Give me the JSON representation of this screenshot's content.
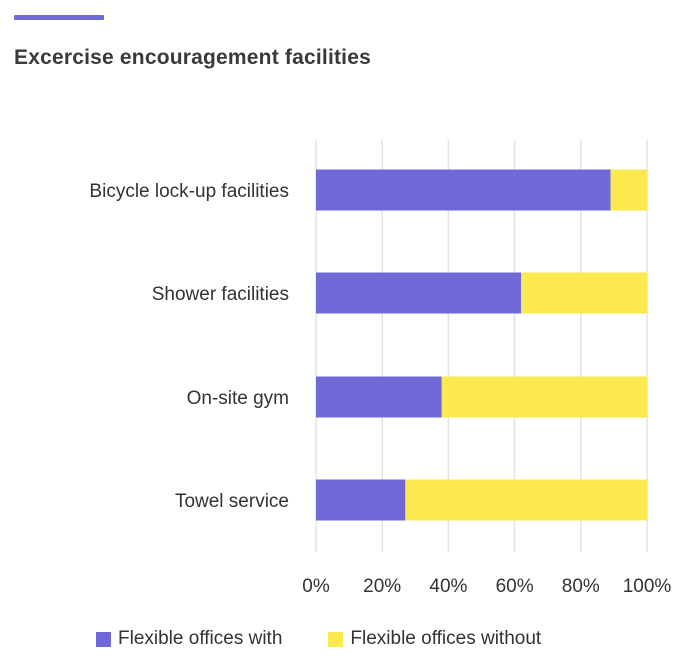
{
  "header": {
    "title": "Excercise encouragement facilities"
  },
  "colors": {
    "accent": "#6f69d8",
    "with": "#6f69d8",
    "without": "#fce94f",
    "grid": "#e3e3e3"
  },
  "chart_data": {
    "type": "bar",
    "orientation": "horizontal",
    "stacked": true,
    "title": "Excercise encouragement facilities",
    "categories": [
      "Bicycle lock-up facilities",
      "Shower facilities",
      "On-site gym",
      "Towel service"
    ],
    "series": [
      {
        "name": "Flexible offices with",
        "color": "#6f69d8",
        "values": [
          89,
          62,
          38,
          27
        ]
      },
      {
        "name": "Flexible offices without",
        "color": "#fce94f",
        "values": [
          11,
          38,
          62,
          73
        ]
      }
    ],
    "xticks": [
      "0%",
      "20%",
      "40%",
      "60%",
      "80%",
      "100%"
    ],
    "xlim": [
      0,
      100
    ],
    "grid": true,
    "legend": "bottom"
  }
}
